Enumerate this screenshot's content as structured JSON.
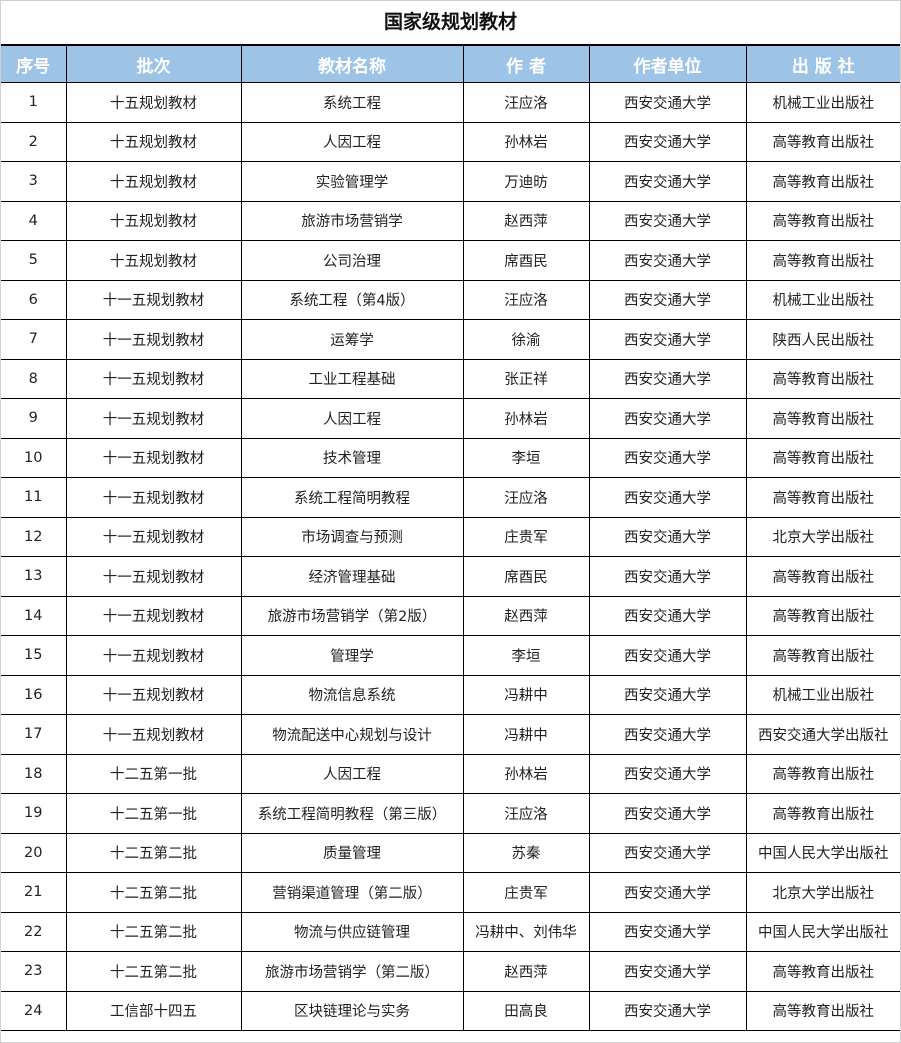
{
  "title": "国家级规划教材",
  "header_color": "#9dc3e6",
  "columns": [
    "序号",
    "批次",
    "教材名称",
    "作 者",
    "作者单位",
    "出 版 社"
  ],
  "rows": [
    [
      "1",
      "十五规划教材",
      "系统工程",
      "汪应洛",
      "西安交通大学",
      "机械工业出版社"
    ],
    [
      "2",
      "十五规划教材",
      "人因工程",
      "孙林岩",
      "西安交通大学",
      "高等教育出版社"
    ],
    [
      "3",
      "十五规划教材",
      "实验管理学",
      "万迪昉",
      "西安交通大学",
      "高等教育出版社"
    ],
    [
      "4",
      "十五规划教材",
      "旅游市场营销学",
      "赵西萍",
      "西安交通大学",
      "高等教育出版社"
    ],
    [
      "5",
      "十五规划教材",
      "公司治理",
      "席酉民",
      "西安交通大学",
      "高等教育出版社"
    ],
    [
      "6",
      "十一五规划教材",
      "系统工程（第4版）",
      "汪应洛",
      "西安交通大学",
      "机械工业出版社"
    ],
    [
      "7",
      "十一五规划教材",
      "运筹学",
      "徐渝",
      "西安交通大学",
      "陕西人民出版社"
    ],
    [
      "8",
      "十一五规划教材",
      "工业工程基础",
      "张正祥",
      "西安交通大学",
      "高等教育出版社"
    ],
    [
      "9",
      "十一五规划教材",
      "人因工程",
      "孙林岩",
      "西安交通大学",
      "高等教育出版社"
    ],
    [
      "10",
      "十一五规划教材",
      "技术管理",
      "李垣",
      "西安交通大学",
      "高等教育出版社"
    ],
    [
      "11",
      "十一五规划教材",
      "系统工程简明教程",
      "汪应洛",
      "西安交通大学",
      "高等教育出版社"
    ],
    [
      "12",
      "十一五规划教材",
      "市场调查与预测",
      "庄贵军",
      "西安交通大学",
      "北京大学出版社"
    ],
    [
      "13",
      "十一五规划教材",
      "经济管理基础",
      "席酉民",
      "西安交通大学",
      "高等教育出版社"
    ],
    [
      "14",
      "十一五规划教材",
      "旅游市场营销学（第2版）",
      "赵西萍",
      "西安交通大学",
      "高等教育出版社"
    ],
    [
      "15",
      "十一五规划教材",
      "管理学",
      "李垣",
      "西安交通大学",
      "高等教育出版社"
    ],
    [
      "16",
      "十一五规划教材",
      "物流信息系统",
      "冯耕中",
      "西安交通大学",
      "机械工业出版社"
    ],
    [
      "17",
      "十一五规划教材",
      "物流配送中心规划与设计",
      "冯耕中",
      "西安交通大学",
      "西安交通大学出版社"
    ],
    [
      "18",
      "十二五第一批",
      "人因工程",
      "孙林岩",
      "西安交通大学",
      "高等教育出版社"
    ],
    [
      "19",
      "十二五第一批",
      "系统工程简明教程（第三版）",
      "汪应洛",
      "西安交通大学",
      "高等教育出版社"
    ],
    [
      "20",
      "十二五第二批",
      "质量管理",
      "苏秦",
      "西安交通大学",
      "中国人民大学出版社"
    ],
    [
      "21",
      "十二五第二批",
      "营销渠道管理（第二版）",
      "庄贵军",
      "西安交通大学",
      "北京大学出版社"
    ],
    [
      "22",
      "十二五第二批",
      "物流与供应链管理",
      "冯耕中、刘伟华",
      "西安交通大学",
      "中国人民大学出版社"
    ],
    [
      "23",
      "十二五第二批",
      "旅游市场营销学（第二版）",
      "赵西萍",
      "西安交通大学",
      "高等教育出版社"
    ],
    [
      "24",
      "工信部十四五",
      "区块链理论与实务",
      "田高良",
      "西安交通大学",
      "高等教育出版社"
    ]
  ]
}
